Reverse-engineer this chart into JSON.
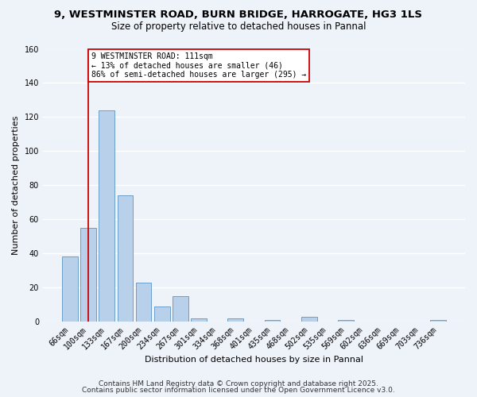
{
  "title_line1": "9, WESTMINSTER ROAD, BURN BRIDGE, HARROGATE, HG3 1LS",
  "title_line2": "Size of property relative to detached houses in Pannal",
  "xlabel": "Distribution of detached houses by size in Pannal",
  "ylabel": "Number of detached properties",
  "categories": [
    "66sqm",
    "100sqm",
    "133sqm",
    "167sqm",
    "200sqm",
    "234sqm",
    "267sqm",
    "301sqm",
    "334sqm",
    "368sqm",
    "401sqm",
    "435sqm",
    "468sqm",
    "502sqm",
    "535sqm",
    "569sqm",
    "602sqm",
    "636sqm",
    "669sqm",
    "703sqm",
    "736sqm"
  ],
  "values": [
    38,
    55,
    124,
    74,
    23,
    9,
    15,
    2,
    0,
    2,
    0,
    1,
    0,
    3,
    0,
    1,
    0,
    0,
    0,
    0,
    1
  ],
  "bar_color": "#b8d0ea",
  "bar_edge_color": "#6aa0c8",
  "ylim": [
    0,
    160
  ],
  "yticks": [
    0,
    20,
    40,
    60,
    80,
    100,
    120,
    140,
    160
  ],
  "vline_x_index": 1,
  "vline_color": "#cc0000",
  "annotation_title": "9 WESTMINSTER ROAD: 111sqm",
  "annotation_line1": "← 13% of detached houses are smaller (46)",
  "annotation_line2": "86% of semi-detached houses are larger (295) →",
  "annotation_box_facecolor": "#ffffff",
  "annotation_box_edgecolor": "#cc0000",
  "footer1": "Contains HM Land Registry data © Crown copyright and database right 2025.",
  "footer2": "Contains public sector information licensed under the Open Government Licence v3.0.",
  "background_color": "#eef2f9",
  "grid_color": "#ffffff",
  "title_fontsize": 9.5,
  "subtitle_fontsize": 8.5,
  "axis_label_fontsize": 8,
  "tick_fontsize": 7,
  "annotation_fontsize": 7,
  "footer_fontsize": 6.5
}
